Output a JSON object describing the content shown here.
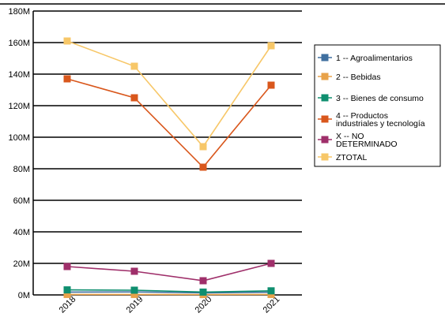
{
  "chart_data": {
    "type": "line",
    "title": "",
    "xlabel": "",
    "ylabel": "",
    "categories": [
      "2018",
      "2019",
      "2020",
      "2021"
    ],
    "ylim": [
      0,
      180000000
    ],
    "yticks": [
      0,
      20000000,
      40000000,
      60000000,
      80000000,
      100000000,
      120000000,
      140000000,
      160000000,
      180000000
    ],
    "ytick_labels": [
      "0M",
      "20M",
      "40M",
      "60M",
      "80M",
      "100M",
      "120M",
      "140M",
      "160M",
      "180M"
    ],
    "grid": true,
    "legend_position": "right",
    "series": [
      {
        "name": "1 -- Agroalimentarios",
        "color": "#3f6f9f",
        "values": [
          1800000,
          1900000,
          1300000,
          1700000
        ]
      },
      {
        "name": "2 -- Bebidas",
        "color": "#e8a24a",
        "values": [
          300000,
          300000,
          200000,
          300000
        ]
      },
      {
        "name": "3 -- Bienes de consumo",
        "color": "#0f8f6f",
        "values": [
          3200000,
          3000000,
          1800000,
          2600000
        ]
      },
      {
        "name": "4 -- Productos industriales y tecnología",
        "color": "#d9571c",
        "values": [
          137000000,
          125000000,
          81000000,
          133000000
        ]
      },
      {
        "name": "X -- NO DETERMINADO",
        "color": "#9f2f6a",
        "values": [
          18000000,
          15000000,
          9000000,
          20000000
        ]
      },
      {
        "name": "ZTOTAL",
        "color": "#f7c768",
        "values": [
          161000000,
          145000000,
          94000000,
          158000000
        ]
      }
    ]
  }
}
